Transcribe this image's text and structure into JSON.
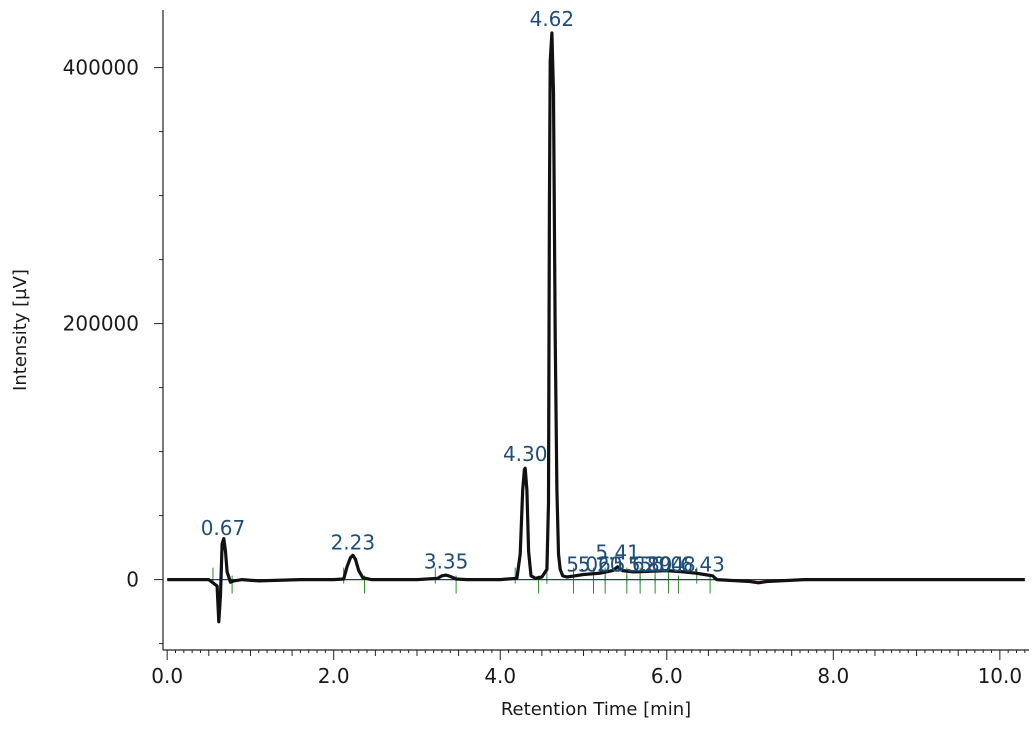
{
  "chart_data": {
    "type": "line",
    "title": "",
    "xlabel": "Retention Time [min]",
    "ylabel": "Intensity [µV]",
    "xlim": [
      -0.05,
      10.35
    ],
    "ylim": [
      -55000,
      445000
    ],
    "x_ticks": [
      "0.0",
      "2.0",
      "4.0",
      "6.0",
      "8.0",
      "10.0"
    ],
    "y_ticks": [
      "0",
      "200000",
      "400000"
    ],
    "grid": false,
    "legend": "none",
    "colors": {
      "trace": "#111111",
      "baseline": "#1f3f6e",
      "peak_markers": "#2e8b2e",
      "labels": "#1f4e79"
    },
    "series": [
      {
        "x": [
          0.0,
          0.3,
          0.5,
          0.6,
          0.62,
          0.64,
          0.66,
          0.68,
          0.7,
          0.72,
          0.74,
          0.76,
          0.8,
          0.9,
          1.1,
          1.6,
          2.0,
          2.12,
          2.16,
          2.2,
          2.23,
          2.26,
          2.3,
          2.35,
          2.45,
          2.7,
          3.0,
          3.25,
          3.3,
          3.35,
          3.4,
          3.47,
          3.6,
          4.0,
          4.2,
          4.24,
          4.27,
          4.29,
          4.3,
          4.32,
          4.34,
          4.37,
          4.42,
          4.5,
          4.56,
          4.58,
          4.59,
          4.6,
          4.62,
          4.64,
          4.66,
          4.68,
          4.7,
          4.72,
          4.75,
          4.8,
          4.9,
          5.0,
          5.2,
          5.35,
          5.41,
          5.47,
          5.6,
          5.8,
          6.0,
          6.2,
          6.35,
          6.45,
          6.55,
          6.6,
          7.0,
          7.1,
          7.2,
          7.65,
          8.0,
          9.0,
          10.0,
          10.3
        ],
        "y": [
          0,
          0,
          0,
          -5000,
          -33000,
          -12000,
          28000,
          32000,
          22000,
          6000,
          2000,
          -2000,
          -1000,
          0,
          -1000,
          0,
          0,
          500,
          10000,
          17000,
          19000,
          16000,
          7000,
          1500,
          0,
          0,
          0,
          1000,
          3000,
          3500,
          2500,
          500,
          0,
          0,
          1000,
          20000,
          70000,
          86000,
          87000,
          70000,
          22000,
          3000,
          1000,
          2000,
          8000,
          60000,
          290000,
          405000,
          427000,
          380000,
          190000,
          70000,
          20000,
          8000,
          3000,
          2000,
          3000,
          4000,
          5000,
          7000,
          10000,
          7000,
          6000,
          6500,
          7000,
          6000,
          5000,
          4000,
          3000,
          0,
          -1500,
          -2500,
          -1500,
          0,
          0,
          0,
          0,
          0
        ]
      }
    ],
    "peaks": [
      {
        "label": "0.67",
        "x": 0.67,
        "label_y": 30000,
        "start": 0.55,
        "end": 0.78
      },
      {
        "label": "2.23",
        "x": 2.23,
        "label_y": 19000,
        "start": 2.12,
        "end": 2.37
      },
      {
        "label": "3.35",
        "x": 3.35,
        "label_y": 4000,
        "start": 3.22,
        "end": 3.47
      },
      {
        "label": "4.30",
        "x": 4.3,
        "label_y": 88000,
        "start": 4.18,
        "end": 4.46
      },
      {
        "label": "4.62",
        "x": 4.62,
        "label_y": 428000,
        "start": 4.56,
        "end": 4.88
      },
      {
        "label": "5.06",
        "x": 5.06,
        "label_y": 1500,
        "start": 4.88,
        "end": 5.12
      },
      {
        "label": "5.20",
        "x": 5.2,
        "label_y": 1500,
        "start": 5.12,
        "end": 5.26
      },
      {
        "label": "5.41",
        "x": 5.41,
        "label_y": 11000,
        "start": 5.26,
        "end": 5.52
      },
      {
        "label": "5.62",
        "x": 5.62,
        "label_y": 1500,
        "start": 5.52,
        "end": 5.68
      },
      {
        "label": "5.80",
        "x": 5.8,
        "label_y": 1500,
        "start": 5.68,
        "end": 5.86
      },
      {
        "label": "5.94",
        "x": 5.94,
        "label_y": 1500,
        "start": 5.86,
        "end": 6.02
      },
      {
        "label": "6.08",
        "x": 6.08,
        "label_y": 1500,
        "start": 6.02,
        "end": 6.14
      },
      {
        "label": "6.43",
        "x": 6.43,
        "label_y": 1500,
        "start": 6.36,
        "end": 6.52
      }
    ]
  }
}
